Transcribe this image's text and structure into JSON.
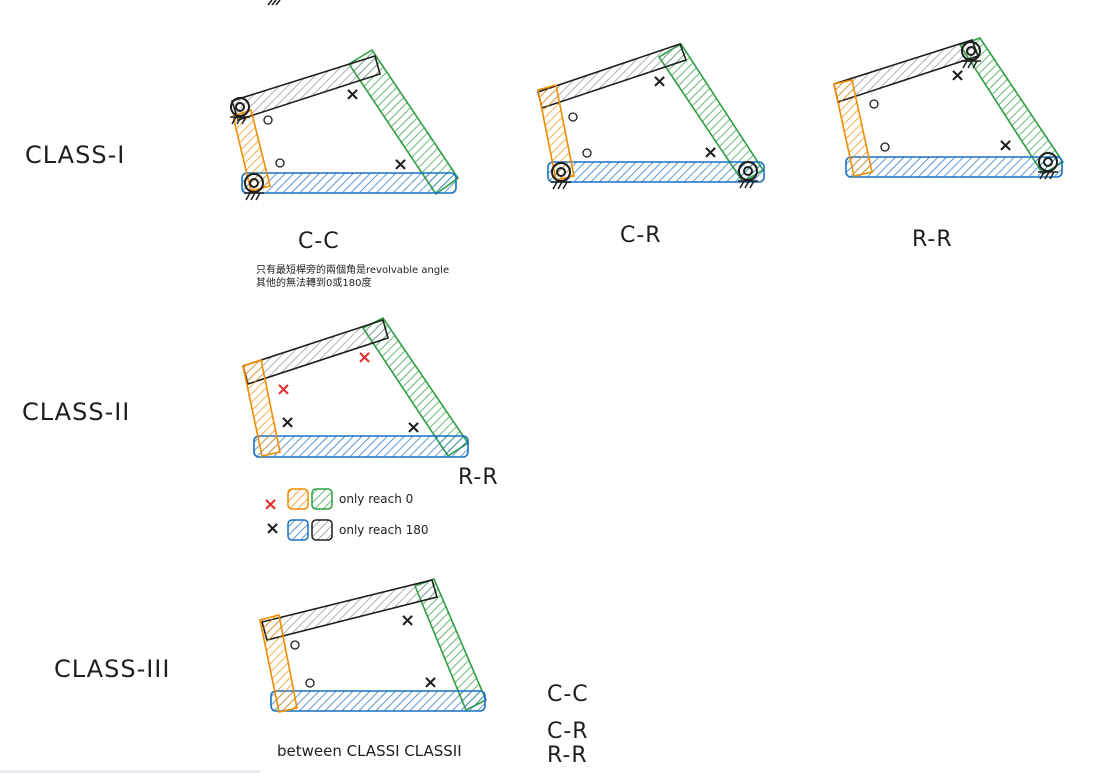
{
  "colors": {
    "orange": "#f08c00",
    "green": "#2f9e44",
    "blue": "#1971c2",
    "black": "#1e1e1e",
    "red": "#e03131"
  },
  "classes": [
    {
      "label": "CLASS-I",
      "mechanisms": [
        {
          "label": "C-C",
          "note_lines": [
            "只有最短桿旁的兩個角是revolvable angle",
            "其他的無法轉到0或180度"
          ]
        },
        {
          "label": "C-R"
        },
        {
          "label": "R-R"
        }
      ]
    },
    {
      "label": "CLASS-II",
      "mechanisms": [
        {
          "label": "R-R"
        }
      ],
      "legend": [
        {
          "mark": "×",
          "mark_color": "red",
          "swatches": [
            "orange",
            "green"
          ],
          "text": "only reach 0"
        },
        {
          "mark": "×",
          "mark_color": "black",
          "swatches": [
            "blue",
            "black"
          ],
          "text": "only reach 180"
        }
      ]
    },
    {
      "label": "CLASS-III",
      "note": "between CLASSI CLASSII",
      "types": [
        "C-C",
        "C-R",
        "R-R"
      ]
    }
  ],
  "marks": {
    "cross": "×",
    "circle": "o"
  }
}
